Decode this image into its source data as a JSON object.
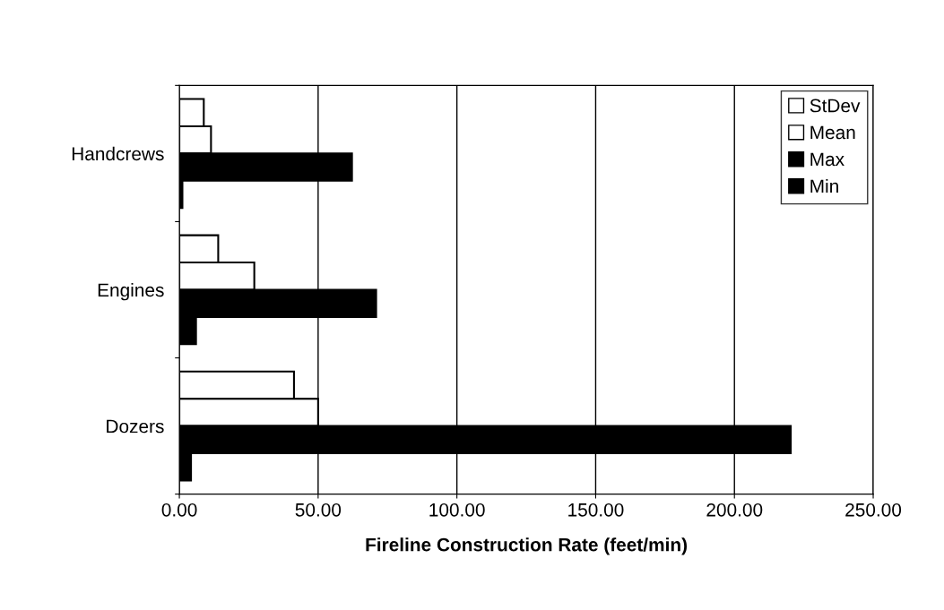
{
  "chart_data": {
    "type": "bar",
    "orientation": "horizontal",
    "xlabel": "Fireline Construction Rate (feet/min)",
    "categories": [
      "Handcrews",
      "Engines",
      "Dozers"
    ],
    "series": [
      {
        "name": "StDev",
        "color": "#ffffff",
        "values": [
          8.8,
          14.0,
          41.3
        ]
      },
      {
        "name": "Mean",
        "color": "#ffffff",
        "values": [
          11.4,
          27.0,
          50.0
        ]
      },
      {
        "name": "Max",
        "color": "#000000",
        "values": [
          62.2,
          70.9,
          220.3
        ]
      },
      {
        "name": "Min",
        "color": "#000000",
        "values": [
          1.1,
          6.0,
          4.2
        ]
      }
    ],
    "xlim": [
      0,
      250
    ],
    "xticks": [
      {
        "value": 0,
        "label": "0.00"
      },
      {
        "value": 50,
        "label": "50.00"
      },
      {
        "value": 100,
        "label": "100.00"
      },
      {
        "value": 150,
        "label": "150.00"
      },
      {
        "value": 200,
        "label": "200.00"
      },
      {
        "value": 250,
        "label": "250.00"
      }
    ],
    "grid": "x",
    "legend": "top right"
  }
}
